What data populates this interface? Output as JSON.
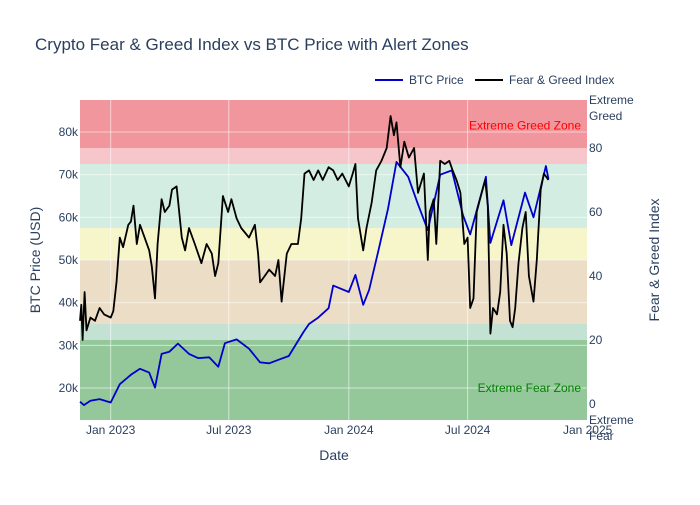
{
  "chart_data": {
    "type": "line",
    "title": "Crypto Fear & Greed Index vs BTC Price with Alert Zones",
    "xlabel": "Date",
    "ylabel_left": "BTC Price (USD)",
    "ylabel_right": "Fear & Greed Index",
    "x_ticks": [
      {
        "date": "2023-01-01",
        "label": "Jan 2023"
      },
      {
        "date": "2023-07-01",
        "label": "Jul 2023"
      },
      {
        "date": "2024-01-01",
        "label": "Jan 2024"
      },
      {
        "date": "2024-07-01",
        "label": "Jul 2024"
      },
      {
        "date": "2025-01-01",
        "label": "Jan 2025"
      }
    ],
    "x_range": [
      "2022-11-15",
      "2024-12-31"
    ],
    "y_left_range": [
      12500,
      87500
    ],
    "y_left_ticks": [
      {
        "value": 20000,
        "label": "20k"
      },
      {
        "value": 30000,
        "label": "30k"
      },
      {
        "value": 40000,
        "label": "40k"
      },
      {
        "value": 50000,
        "label": "50k"
      },
      {
        "value": 60000,
        "label": "60k"
      },
      {
        "value": 70000,
        "label": "70k"
      },
      {
        "value": 80000,
        "label": "80k"
      }
    ],
    "y_right_range": [
      -5,
      95
    ],
    "y_right_ticks": [
      {
        "value": 0,
        "label": "0"
      },
      {
        "value": 20,
        "label": "20"
      },
      {
        "value": 40,
        "label": "40"
      },
      {
        "value": 60,
        "label": "60"
      },
      {
        "value": 80,
        "label": "80"
      }
    ],
    "y_right_category_labels": [
      {
        "value": 95,
        "line1": "Extreme",
        "line2": "Greed"
      },
      {
        "value": -5,
        "line1": "Extreme",
        "line2": "Fear"
      }
    ],
    "zones": [
      {
        "from": 80,
        "to": 95,
        "color": "#e6505a",
        "opacity": 0.6
      },
      {
        "from": 75,
        "to": 80,
        "color": "#f0a0a8",
        "opacity": 0.6
      },
      {
        "from": 55,
        "to": 75,
        "color": "#a8dcc8",
        "opacity": 0.5
      },
      {
        "from": 45,
        "to": 55,
        "color": "#f2f2b4",
        "opacity": 0.7
      },
      {
        "from": 25,
        "to": 45,
        "color": "#e0c8a0",
        "opacity": 0.6
      },
      {
        "from": 20,
        "to": 25,
        "color": "#9ccfb8",
        "opacity": 0.6
      },
      {
        "from": -5,
        "to": 20,
        "color": "#3c9a48",
        "opacity": 0.55
      }
    ],
    "zone_annotations": [
      {
        "text": "Extreme Greed Zone",
        "value": 87,
        "color": "#ff0000"
      },
      {
        "text": "Extreme Fear Zone",
        "value": 5,
        "color": "#008000"
      }
    ],
    "legend": {
      "placement": "top-right"
    },
    "series": [
      {
        "name": "BTC Price",
        "color": "#0000cc",
        "axis": "left",
        "points": [
          [
            "2022-11-15",
            16800
          ],
          [
            "2022-11-21",
            16000
          ],
          [
            "2022-12-01",
            17000
          ],
          [
            "2022-12-15",
            17400
          ],
          [
            "2023-01-01",
            16600
          ],
          [
            "2023-01-15",
            20900
          ],
          [
            "2023-02-01",
            23100
          ],
          [
            "2023-02-15",
            24500
          ],
          [
            "2023-03-01",
            23600
          ],
          [
            "2023-03-10",
            20100
          ],
          [
            "2023-03-20",
            28000
          ],
          [
            "2023-04-01",
            28500
          ],
          [
            "2023-04-14",
            30400
          ],
          [
            "2023-05-01",
            28000
          ],
          [
            "2023-05-15",
            27000
          ],
          [
            "2023-06-01",
            27200
          ],
          [
            "2023-06-15",
            25000
          ],
          [
            "2023-06-25",
            30500
          ],
          [
            "2023-07-13",
            31400
          ],
          [
            "2023-08-01",
            29200
          ],
          [
            "2023-08-18",
            26000
          ],
          [
            "2023-09-01",
            25800
          ],
          [
            "2023-09-15",
            26600
          ],
          [
            "2023-10-01",
            27500
          ],
          [
            "2023-10-23",
            33000
          ],
          [
            "2023-11-01",
            35000
          ],
          [
            "2023-11-15",
            36500
          ],
          [
            "2023-12-01",
            38700
          ],
          [
            "2023-12-08",
            44000
          ],
          [
            "2024-01-01",
            42500
          ],
          [
            "2024-01-11",
            46500
          ],
          [
            "2024-01-23",
            39500
          ],
          [
            "2024-02-01",
            43000
          ],
          [
            "2024-02-15",
            52000
          ],
          [
            "2024-03-01",
            62000
          ],
          [
            "2024-03-14",
            73000
          ],
          [
            "2024-04-01",
            69500
          ],
          [
            "2024-04-15",
            63500
          ],
          [
            "2024-05-01",
            57000
          ],
          [
            "2024-05-20",
            70000
          ],
          [
            "2024-06-07",
            71000
          ],
          [
            "2024-06-24",
            60500
          ],
          [
            "2024-07-05",
            56000
          ],
          [
            "2024-07-29",
            69500
          ],
          [
            "2024-08-05",
            54000
          ],
          [
            "2024-08-25",
            64000
          ],
          [
            "2024-09-06",
            53500
          ],
          [
            "2024-09-27",
            65800
          ],
          [
            "2024-10-10",
            60000
          ],
          [
            "2024-10-29",
            72000
          ],
          [
            "2024-11-02",
            69000
          ]
        ]
      },
      {
        "name": "Fear & Greed Index",
        "color": "#000000",
        "axis": "right",
        "points": [
          [
            "2022-11-15",
            26
          ],
          [
            "2022-11-17",
            31
          ],
          [
            "2022-11-19",
            20
          ],
          [
            "2022-11-22",
            35
          ],
          [
            "2022-11-25",
            23
          ],
          [
            "2022-12-01",
            27
          ],
          [
            "2022-12-08",
            26
          ],
          [
            "2022-12-15",
            30
          ],
          [
            "2022-12-22",
            28
          ],
          [
            "2023-01-01",
            27
          ],
          [
            "2023-01-05",
            29
          ],
          [
            "2023-01-10",
            38
          ],
          [
            "2023-01-15",
            52
          ],
          [
            "2023-01-20",
            49
          ],
          [
            "2023-01-28",
            56
          ],
          [
            "2023-02-01",
            57
          ],
          [
            "2023-02-05",
            62
          ],
          [
            "2023-02-10",
            50
          ],
          [
            "2023-02-15",
            56
          ],
          [
            "2023-02-22",
            52
          ],
          [
            "2023-03-01",
            48
          ],
          [
            "2023-03-05",
            43
          ],
          [
            "2023-03-10",
            33
          ],
          [
            "2023-03-14",
            50
          ],
          [
            "2023-03-20",
            64
          ],
          [
            "2023-03-25",
            60
          ],
          [
            "2023-04-01",
            62
          ],
          [
            "2023-04-05",
            67
          ],
          [
            "2023-04-12",
            68
          ],
          [
            "2023-04-20",
            52
          ],
          [
            "2023-04-25",
            48
          ],
          [
            "2023-05-01",
            55
          ],
          [
            "2023-05-10",
            50
          ],
          [
            "2023-05-20",
            44
          ],
          [
            "2023-05-28",
            50
          ],
          [
            "2023-06-05",
            47
          ],
          [
            "2023-06-10",
            40
          ],
          [
            "2023-06-15",
            44
          ],
          [
            "2023-06-22",
            65
          ],
          [
            "2023-06-30",
            60
          ],
          [
            "2023-07-05",
            64
          ],
          [
            "2023-07-13",
            58
          ],
          [
            "2023-07-20",
            55
          ],
          [
            "2023-08-01",
            52
          ],
          [
            "2023-08-10",
            56
          ],
          [
            "2023-08-15",
            47
          ],
          [
            "2023-08-18",
            38
          ],
          [
            "2023-08-25",
            40
          ],
          [
            "2023-09-01",
            42
          ],
          [
            "2023-09-10",
            40
          ],
          [
            "2023-09-15",
            45
          ],
          [
            "2023-09-20",
            32
          ],
          [
            "2023-09-28",
            47
          ],
          [
            "2023-10-05",
            50
          ],
          [
            "2023-10-15",
            50
          ],
          [
            "2023-10-20",
            58
          ],
          [
            "2023-10-25",
            72
          ],
          [
            "2023-11-01",
            73
          ],
          [
            "2023-11-08",
            70
          ],
          [
            "2023-11-15",
            73
          ],
          [
            "2023-11-22",
            70
          ],
          [
            "2023-12-01",
            74
          ],
          [
            "2023-12-08",
            73
          ],
          [
            "2023-12-15",
            70
          ],
          [
            "2023-12-22",
            72
          ],
          [
            "2024-01-01",
            68
          ],
          [
            "2024-01-07",
            72
          ],
          [
            "2024-01-11",
            75
          ],
          [
            "2024-01-15",
            58
          ],
          [
            "2024-01-23",
            48
          ],
          [
            "2024-01-28",
            55
          ],
          [
            "2024-02-05",
            63
          ],
          [
            "2024-02-12",
            73
          ],
          [
            "2024-02-20",
            76
          ],
          [
            "2024-02-28",
            80
          ],
          [
            "2024-03-05",
            90
          ],
          [
            "2024-03-10",
            84
          ],
          [
            "2024-03-14",
            88
          ],
          [
            "2024-03-20",
            74
          ],
          [
            "2024-03-26",
            82
          ],
          [
            "2024-04-02",
            77
          ],
          [
            "2024-04-10",
            80
          ],
          [
            "2024-04-16",
            66
          ],
          [
            "2024-04-25",
            72
          ],
          [
            "2024-05-01",
            45
          ],
          [
            "2024-05-04",
            60
          ],
          [
            "2024-05-10",
            64
          ],
          [
            "2024-05-14",
            50
          ],
          [
            "2024-05-20",
            76
          ],
          [
            "2024-05-27",
            75
          ],
          [
            "2024-06-03",
            76
          ],
          [
            "2024-06-08",
            73
          ],
          [
            "2024-06-14",
            70
          ],
          [
            "2024-06-20",
            66
          ],
          [
            "2024-06-26",
            50
          ],
          [
            "2024-07-01",
            52
          ],
          [
            "2024-07-05",
            30
          ],
          [
            "2024-07-10",
            33
          ],
          [
            "2024-07-15",
            60
          ],
          [
            "2024-07-20",
            64
          ],
          [
            "2024-07-28",
            70
          ],
          [
            "2024-08-01",
            62
          ],
          [
            "2024-08-05",
            22
          ],
          [
            "2024-08-09",
            30
          ],
          [
            "2024-08-15",
            28
          ],
          [
            "2024-08-20",
            35
          ],
          [
            "2024-08-25",
            56
          ],
          [
            "2024-08-30",
            47
          ],
          [
            "2024-09-04",
            26
          ],
          [
            "2024-09-08",
            24
          ],
          [
            "2024-09-12",
            30
          ],
          [
            "2024-09-17",
            44
          ],
          [
            "2024-09-23",
            55
          ],
          [
            "2024-09-28",
            60
          ],
          [
            "2024-10-03",
            40
          ],
          [
            "2024-10-10",
            32
          ],
          [
            "2024-10-15",
            45
          ],
          [
            "2024-10-21",
            67
          ],
          [
            "2024-10-26",
            72
          ],
          [
            "2024-11-02",
            70
          ]
        ]
      }
    ]
  }
}
